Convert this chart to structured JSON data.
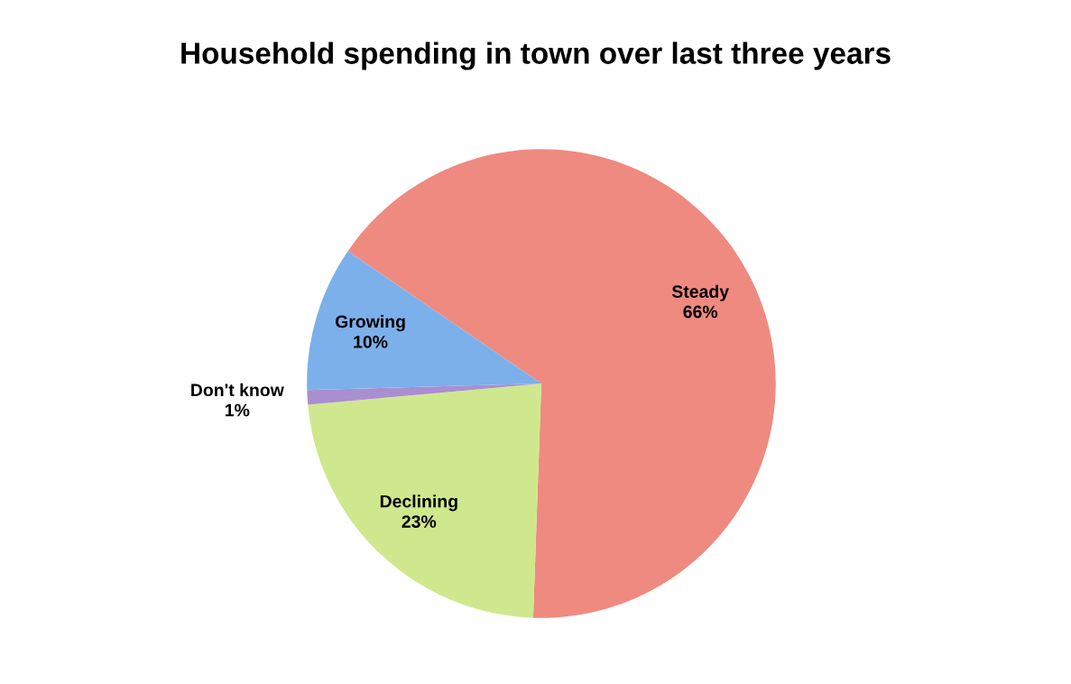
{
  "chart_data": {
    "type": "pie",
    "title": "Household spending in town over last three years",
    "categories": [
      "Steady",
      "Declining",
      "Don't know",
      "Growing"
    ],
    "values": [
      66,
      23,
      1,
      10
    ],
    "colors": [
      "#ef8a80",
      "#cfe88e",
      "#a98fd0",
      "#7cb0ea"
    ],
    "value_labels": [
      "66%",
      "23%",
      "1%",
      "10%"
    ],
    "legend": false
  }
}
